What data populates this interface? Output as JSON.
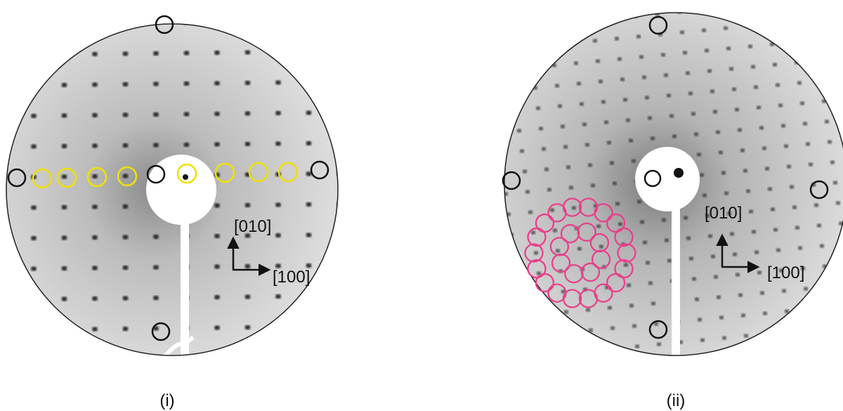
{
  "panels": [
    {
      "label": "(i)",
      "axes": {
        "vertical": "[010]",
        "horizontal": "[100]"
      }
    },
    {
      "label": "(ii)",
      "axes": {
        "vertical": "[010]",
        "horizontal": "[100]"
      }
    }
  ]
}
